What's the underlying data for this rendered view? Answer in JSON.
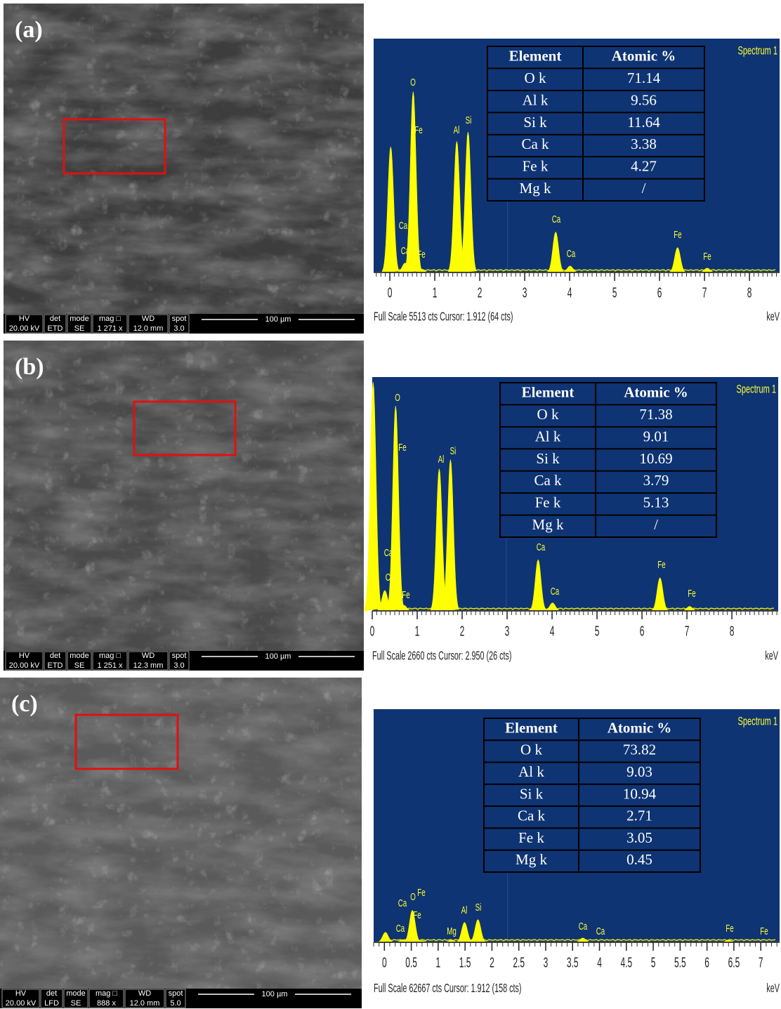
{
  "panels": [
    {
      "label": "(a)",
      "sem": {
        "header": [
          "HV",
          "det",
          "mode",
          "mag □",
          "WD",
          "spot"
        ],
        "values": [
          "20.00 kV",
          "ETD",
          "SE",
          "1 271 x",
          "12.0 mm",
          "3.0"
        ],
        "scale": "100 µm"
      },
      "spectrum": {
        "type": "spectrum",
        "name": "Spectrum 1",
        "xlim": [
          -0.36,
          8.67
        ],
        "ylim": [
          0,
          5513
        ],
        "xticks": [
          0,
          1,
          2,
          3,
          4,
          5,
          6,
          7,
          8
        ],
        "xlabel": "keV",
        "footer": "Full Scale 5513 cts Cursor: 1.912  (64 cts)",
        "peaks": [
          {
            "kev": 0.02,
            "cts": 2960
          },
          {
            "kev": 0.34,
            "cts": 220
          },
          {
            "kev": 0.52,
            "cts": 4260
          },
          {
            "kev": 0.7,
            "cts": 80
          },
          {
            "kev": 1.49,
            "cts": 3090
          },
          {
            "kev": 1.74,
            "cts": 3310
          },
          {
            "kev": 3.69,
            "cts": 950
          },
          {
            "kev": 4.01,
            "cts": 150
          },
          {
            "kev": 6.4,
            "cts": 585
          },
          {
            "kev": 7.06,
            "cts": 100
          }
        ],
        "peak_labels": [
          "O",
          "Fe",
          "Al",
          "Si",
          "Ca",
          "Ca",
          "Fe",
          "Ca",
          "Ca",
          "Fe",
          "Fe"
        ]
      },
      "table": {
        "header": [
          "Element",
          "Atomic %"
        ],
        "rows": [
          [
            "O k",
            71.14
          ],
          [
            "Al k",
            9.56
          ],
          [
            "Si k",
            11.64
          ],
          [
            "Ca k",
            3.38
          ],
          [
            "Fe k",
            4.27
          ],
          [
            "Mg k",
            "/"
          ]
        ]
      }
    },
    {
      "label": "(b)",
      "sem": {
        "header": [
          "HV",
          "det",
          "mode",
          "mag □",
          "WD",
          "spot"
        ],
        "values": [
          "20.00 kV",
          "ETD",
          "SE",
          "1 251 x",
          "12.3 mm",
          "3.0"
        ],
        "scale": "100 µm"
      },
      "spectrum": {
        "type": "spectrum",
        "name": "Spectrum 1",
        "xlim": [
          0,
          9.03
        ],
        "ylim": [
          0,
          2660
        ],
        "xticks": [
          0,
          1,
          2,
          3,
          4,
          5,
          6,
          7,
          8
        ],
        "xlabel": "keV",
        "footer": "Full Scale 2660 cts Cursor: 2.950  (26 cts)",
        "peaks": [
          {
            "kev": 0.02,
            "cts": 2600
          },
          {
            "kev": 0.28,
            "cts": 230
          },
          {
            "kev": 0.52,
            "cts": 2330
          },
          {
            "kev": 0.7,
            "cts": 65
          },
          {
            "kev": 1.49,
            "cts": 1615
          },
          {
            "kev": 1.74,
            "cts": 1720
          },
          {
            "kev": 3.69,
            "cts": 580
          },
          {
            "kev": 4.01,
            "cts": 90
          },
          {
            "kev": 6.4,
            "cts": 375
          },
          {
            "kev": 7.06,
            "cts": 50
          }
        ],
        "peak_labels": [
          "O",
          "Fe",
          "Al",
          "Si",
          "Ca",
          "Ca",
          "Fe",
          "Ca",
          "Ca",
          "Fe",
          "Fe"
        ]
      },
      "table": {
        "header": [
          "Element",
          "Atomic %"
        ],
        "rows": [
          [
            "O k",
            71.38
          ],
          [
            "Al k",
            9.01
          ],
          [
            "Si k",
            10.69
          ],
          [
            "Ca k",
            3.79
          ],
          [
            "Fe k",
            5.13
          ],
          [
            "Mg k",
            "/"
          ]
        ]
      }
    },
    {
      "label": "(c)",
      "sem": {
        "header": [
          "HV",
          "det",
          "mode",
          "mag □",
          "WD",
          "spot"
        ],
        "values": [
          "20.00 kV",
          "LFD",
          "SE",
          "888 x",
          "12.0 mm",
          "5.0"
        ],
        "scale": "100 µm"
      },
      "spectrum": {
        "type": "spectrum",
        "name": "Spectrum 1",
        "xlim": [
          -0.2,
          7.35
        ],
        "ylim": [
          0,
          62667
        ],
        "xticks": [
          0,
          0.5,
          1,
          1.5,
          2,
          2.5,
          3,
          3.5,
          4,
          4.5,
          5,
          5.5,
          6,
          6.5,
          7
        ],
        "xlabel": "keV",
        "footer": "Full Scale 62667 cts Cursor: 1.912  (158 cts)",
        "peaks": [
          {
            "kev": 0.02,
            "cts": 2660
          },
          {
            "kev": 0.34,
            "cts": 700
          },
          {
            "kev": 0.52,
            "cts": 8550
          },
          {
            "kev": 0.7,
            "cts": 400
          },
          {
            "kev": 1.25,
            "cts": 570
          },
          {
            "kev": 1.49,
            "cts": 5320
          },
          {
            "kev": 1.74,
            "cts": 6080
          },
          {
            "kev": 3.69,
            "cts": 1140
          },
          {
            "kev": 6.4,
            "cts": 570
          }
        ],
        "peak_labels": [
          "Ca",
          "O",
          "Fe",
          "Fe",
          "Ca",
          "Mg",
          "Al",
          "Si",
          "Ca",
          "Ca",
          "Fe",
          "Fe"
        ]
      },
      "table": {
        "header": [
          "Element",
          "Atomic %"
        ],
        "rows": [
          [
            "O k",
            73.82
          ],
          [
            "Al k",
            9.03
          ],
          [
            "Si k",
            10.94
          ],
          [
            "Ca k",
            2.71
          ],
          [
            "Fe k",
            3.05
          ],
          [
            "Mg k",
            0.45
          ]
        ]
      }
    }
  ]
}
